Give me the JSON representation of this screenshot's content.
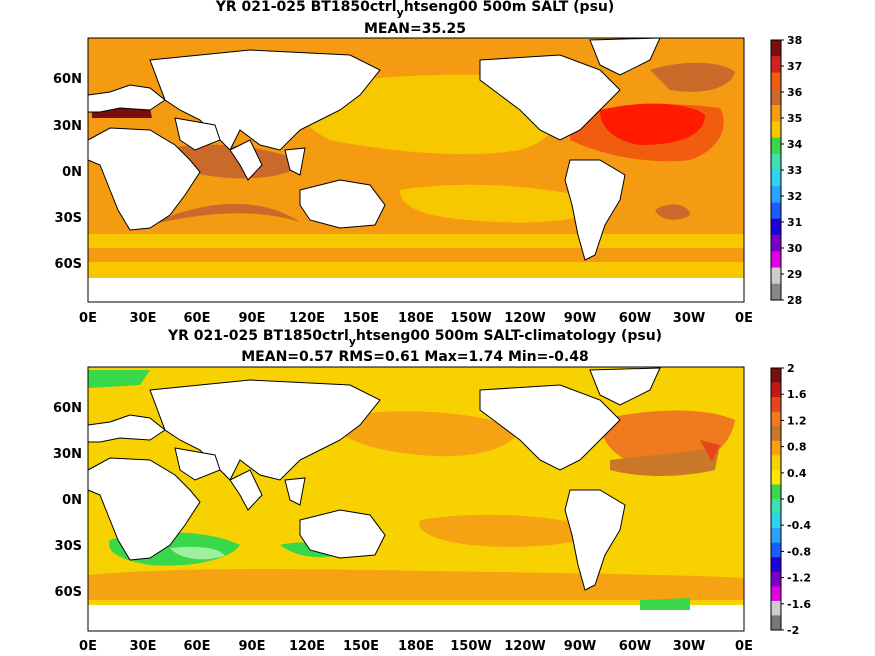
{
  "colors": {
    "land": "#ffffff",
    "coast": "#000000",
    "ice": "#ffffff"
  },
  "panels": [
    {
      "id": "top",
      "title_prefix": "YR 021-025 BT1850ctrl",
      "title_sub": "y",
      "title_suffix": "htseng00 500m SALT (psu)",
      "stats": "MEAN=35.25",
      "base_color": "#f39c12",
      "colorbar": {
        "labels": [
          "38",
          "37",
          "36",
          "35",
          "34",
          "33",
          "32",
          "31",
          "30",
          "29",
          "28"
        ],
        "colors": [
          "#7a0d0d",
          "#d42020",
          "#f25c0f",
          "#c96a2a",
          "#f59b12",
          "#f7c700",
          "#38d84a",
          "#3fe0b0",
          "#2fd3f0",
          "#2aa3ff",
          "#1a5cff",
          "#2200d8",
          "#7a00c8",
          "#e000e0",
          "#cccccc",
          "#888888"
        ]
      }
    },
    {
      "id": "bottom",
      "title_prefix": "YR 021-025 BT1850ctrl",
      "title_sub": "y",
      "title_suffix": "htseng00 500m SALT-climatology (psu)",
      "stats": "MEAN=0.57   RMS=0.61   Max=1.74   Min=-0.48",
      "base_color": "#f7cf00",
      "colorbar": {
        "labels": [
          "2",
          "1.6",
          "1.2",
          "0.8",
          "0.4",
          "0",
          "-0.4",
          "-0.8",
          "-1.2",
          "-1.6",
          "-2"
        ],
        "colors": [
          "#7a0d0d",
          "#c41818",
          "#e8461a",
          "#f07a1e",
          "#c9782a",
          "#f5a312",
          "#f7d200",
          "#ffe600",
          "#38d84a",
          "#3fe0b0",
          "#2fd3f0",
          "#2aa3ff",
          "#1a5cff",
          "#2200d8",
          "#7a00c8",
          "#e000e0",
          "#cccccc",
          "#777777"
        ]
      }
    }
  ],
  "x_ticks": [
    "0E",
    "30E",
    "60E",
    "90E",
    "120E",
    "150E",
    "180E",
    "150W",
    "120W",
    "90W",
    "60W",
    "30W",
    "0E"
  ],
  "y_ticks": [
    "60N",
    "30N",
    "0N",
    "30S",
    "60S"
  ]
}
